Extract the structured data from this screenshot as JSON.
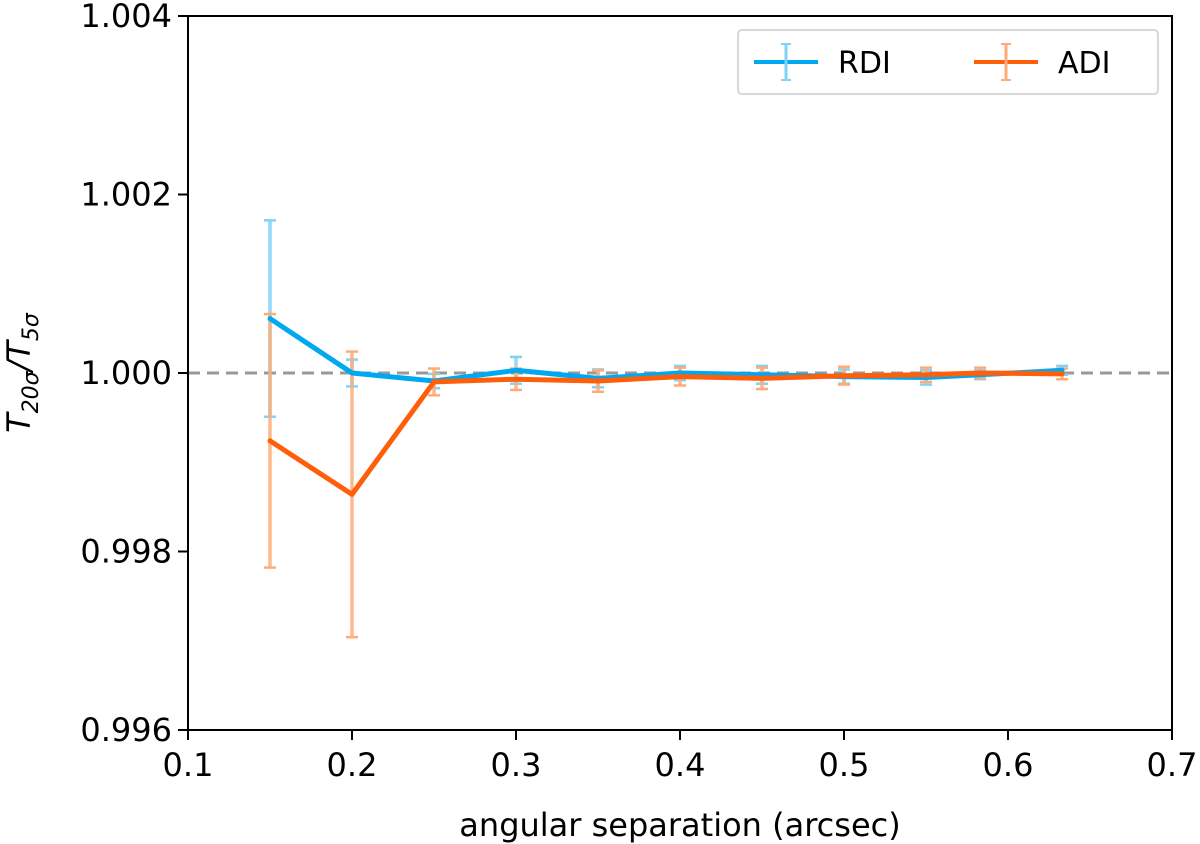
{
  "chart_data": {
    "type": "line",
    "title": "",
    "xlabel": "angular separation (arcsec)",
    "ylabel": {
      "main": "T",
      "sub1": "20σ",
      "slash": "/T",
      "sub2": "5σ"
    },
    "xlim": [
      0.1,
      0.7
    ],
    "ylim": [
      0.996,
      1.004
    ],
    "xticks": [
      0.1,
      0.2,
      0.3,
      0.4,
      0.5,
      0.6,
      0.7
    ],
    "xtick_labels": [
      "0.1",
      "0.2",
      "0.3",
      "0.4",
      "0.5",
      "0.6",
      "0.7"
    ],
    "yticks": [
      0.996,
      0.998,
      1.0,
      1.002,
      1.004
    ],
    "ytick_labels": [
      "0.996",
      "0.998",
      "1.000",
      "1.002",
      "1.004"
    ],
    "reference_line": 1.0,
    "grid": false,
    "legend_position": "top-right",
    "series": [
      {
        "name": "RDI",
        "color": "#00a8f0",
        "error_color": "#7fd3f7",
        "x": [
          0.15,
          0.2,
          0.25,
          0.3,
          0.35,
          0.4,
          0.45,
          0.5,
          0.55,
          0.583,
          0.633
        ],
        "y": [
          1.00061,
          1.0,
          0.99991,
          1.00003,
          0.99994,
          1.0,
          0.99998,
          0.99996,
          0.99995,
          0.99998,
          1.00003
        ],
        "yerr": [
          0.0011,
          0.00015,
          8e-05,
          0.00015,
          0.0001,
          8e-05,
          0.0001,
          8e-05,
          8e-05,
          5e-05,
          5e-05
        ]
      },
      {
        "name": "ADI",
        "color": "#ff5f0a",
        "error_color": "#ffab78",
        "x": [
          0.15,
          0.2,
          0.25,
          0.3,
          0.35,
          0.4,
          0.45,
          0.5,
          0.55,
          0.583,
          0.633
        ],
        "y": [
          0.99924,
          0.99864,
          0.9999,
          0.99993,
          0.99991,
          0.99996,
          0.99994,
          0.99997,
          0.99998,
          1.0,
          0.99999
        ],
        "yerr": [
          0.00142,
          0.0016,
          0.00015,
          0.00012,
          0.00012,
          0.0001,
          0.00012,
          0.0001,
          8e-05,
          6e-05,
          6e-05
        ]
      }
    ]
  }
}
